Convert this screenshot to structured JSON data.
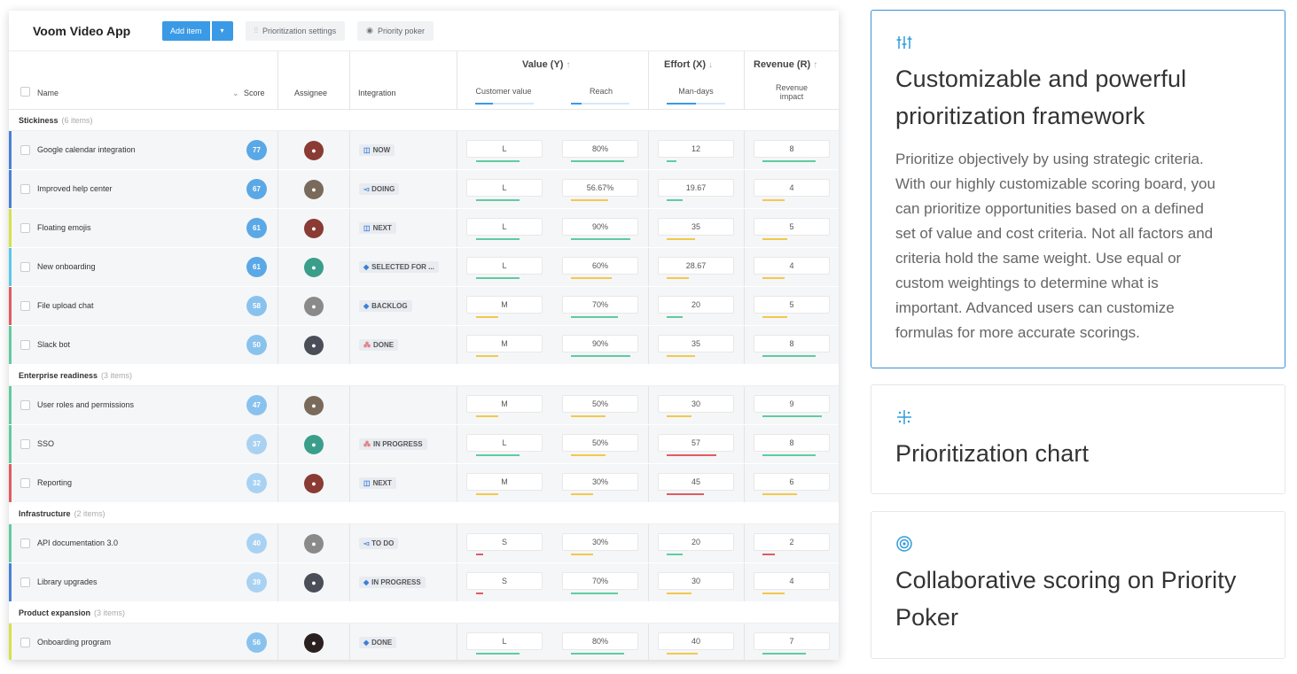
{
  "app": {
    "title": "Voom Video App",
    "add_item_label": "Add item",
    "dropdown_glyph": "▾",
    "prioritization_settings_label": "Prioritization settings",
    "priority_poker_label": "Priority poker"
  },
  "columns": {
    "name": "Name",
    "score": "Score",
    "assignee": "Assignee",
    "integration": "Integration",
    "value_group": "Value (Y)",
    "customer_value": "Customer value",
    "reach": "Reach",
    "effort_group": "Effort (X)",
    "man_days": "Man-days",
    "revenue_group": "Revenue (R)",
    "revenue_impact_1": "Revenue",
    "revenue_impact_2": "impact"
  },
  "colors": {
    "accent": "#3a9ae6",
    "card_accent": "#2f9bdc",
    "green": "#5fcca0",
    "yellow": "#f2c94c",
    "red": "#e05b63"
  },
  "sections": [
    {
      "name": "Stickiness",
      "count": "(6 items)",
      "rows": [
        {
          "name": "Google calendar integration",
          "score": "77",
          "label_color": "#4a7fd8",
          "integration": "NOW",
          "integ_icon": "board-icon",
          "cv": "L",
          "reach": "80%",
          "days": "12",
          "rev": "8",
          "cv_bar": [
            "#5fcca0",
            0.7
          ],
          "reach_bar": [
            "#5fcca0",
            0.85
          ],
          "days_bar": [
            "#5fcca0",
            0.15
          ],
          "rev_bar": [
            "#5fcca0",
            0.85
          ],
          "avatar": "#8a3b34"
        },
        {
          "name": "Improved help center",
          "score": "67",
          "label_color": "#4a7fd8",
          "integration": "DOING",
          "integ_icon": "flag-icon",
          "cv": "L",
          "reach": "56.67%",
          "days": "19.67",
          "rev": "4",
          "cv_bar": [
            "#5fcca0",
            0.7
          ],
          "reach_bar": [
            "#f2c94c",
            0.6
          ],
          "days_bar": [
            "#5fcca0",
            0.25
          ],
          "rev_bar": [
            "#f2c94c",
            0.35
          ],
          "avatar": "#7a6a5c"
        },
        {
          "name": "Floating emojis",
          "score": "61",
          "label_color": "#d8e04a",
          "integration": "NEXT",
          "integ_icon": "board-icon",
          "cv": "L",
          "reach": "90%",
          "days": "35",
          "rev": "5",
          "cv_bar": [
            "#5fcca0",
            0.7
          ],
          "reach_bar": [
            "#5fcca0",
            0.95
          ],
          "days_bar": [
            "#f2c94c",
            0.45
          ],
          "rev_bar": [
            "#f2c94c",
            0.4
          ],
          "avatar": "#8a3b34"
        },
        {
          "name": "New onboarding",
          "score": "61",
          "label_color": "#5ac8e8",
          "integration": "SELECTED FOR ...",
          "integ_icon": "diamond-icon",
          "cv": "L",
          "reach": "60%",
          "days": "28.67",
          "rev": "4",
          "cv_bar": [
            "#5fcca0",
            0.7
          ],
          "reach_bar": [
            "#f2c94c",
            0.65
          ],
          "days_bar": [
            "#f2c94c",
            0.35
          ],
          "rev_bar": [
            "#f2c94c",
            0.35
          ],
          "avatar": "#3a9e8a"
        },
        {
          "name": "File upload chat",
          "score": "58",
          "label_color": "#e05b63",
          "integration": "BACKLOG",
          "integ_icon": "diamond-icon",
          "cv": "M",
          "reach": "70%",
          "days": "20",
          "rev": "5",
          "cv_bar": [
            "#f2c94c",
            0.35
          ],
          "reach_bar": [
            "#5fcca0",
            0.75
          ],
          "days_bar": [
            "#5fcca0",
            0.25
          ],
          "rev_bar": [
            "#f2c94c",
            0.4
          ],
          "avatar": "#8a8a8a"
        },
        {
          "name": "Slack bot",
          "score": "50",
          "label_color": "#5fcca0",
          "integration": "DONE",
          "integ_icon": "dots-icon",
          "cv": "M",
          "reach": "90%",
          "days": "35",
          "rev": "8",
          "cv_bar": [
            "#f2c94c",
            0.35
          ],
          "reach_bar": [
            "#5fcca0",
            0.95
          ],
          "days_bar": [
            "#f2c94c",
            0.45
          ],
          "rev_bar": [
            "#5fcca0",
            0.85
          ],
          "avatar": "#4a4e58"
        }
      ]
    },
    {
      "name": "Enterprise readiness",
      "count": "(3 items)",
      "rows": [
        {
          "name": "User roles and permissions",
          "score": "47",
          "label_color": "#5fcca0",
          "integration": "",
          "integ_icon": "",
          "cv": "M",
          "reach": "50%",
          "days": "30",
          "rev": "9",
          "cv_bar": [
            "#f2c94c",
            0.35
          ],
          "reach_bar": [
            "#f2c94c",
            0.55
          ],
          "days_bar": [
            "#f2c94c",
            0.4
          ],
          "rev_bar": [
            "#5fcca0",
            0.95
          ],
          "avatar": "#7a6a5c"
        },
        {
          "name": "SSO",
          "score": "37",
          "label_color": "#5fcca0",
          "integration": "IN PROGRESS",
          "integ_icon": "dots-icon",
          "cv": "L",
          "reach": "50%",
          "days": "57",
          "rev": "8",
          "cv_bar": [
            "#5fcca0",
            0.7
          ],
          "reach_bar": [
            "#f2c94c",
            0.55
          ],
          "days_bar": [
            "#e05b63",
            0.8
          ],
          "rev_bar": [
            "#5fcca0",
            0.85
          ],
          "avatar": "#3a9e8a"
        },
        {
          "name": "Reporting",
          "score": "32",
          "label_color": "#e05b63",
          "integration": "NEXT",
          "integ_icon": "board-icon",
          "cv": "M",
          "reach": "30%",
          "days": "45",
          "rev": "6",
          "cv_bar": [
            "#f2c94c",
            0.35
          ],
          "reach_bar": [
            "#f2c94c",
            0.35
          ],
          "days_bar": [
            "#e05b63",
            0.6
          ],
          "rev_bar": [
            "#f2c94c",
            0.55
          ],
          "avatar": "#8a3b34"
        }
      ]
    },
    {
      "name": "Infrastructure",
      "count": "(2 items)",
      "rows": [
        {
          "name": "API documentation 3.0",
          "score": "40",
          "label_color": "#5fcca0",
          "integration": "TO DO",
          "integ_icon": "flag-icon",
          "cv": "S",
          "reach": "30%",
          "days": "20",
          "rev": "2",
          "cv_bar": [
            "#e05b63",
            0.12
          ],
          "reach_bar": [
            "#f2c94c",
            0.35
          ],
          "days_bar": [
            "#5fcca0",
            0.25
          ],
          "rev_bar": [
            "#e05b63",
            0.2
          ],
          "avatar": "#8a8a8a"
        },
        {
          "name": "Library upgrades",
          "score": "39",
          "label_color": "#4a7fd8",
          "integration": "IN PROGRESS",
          "integ_icon": "diamond-icon",
          "cv": "S",
          "reach": "70%",
          "days": "30",
          "rev": "4",
          "cv_bar": [
            "#e05b63",
            0.12
          ],
          "reach_bar": [
            "#5fcca0",
            0.75
          ],
          "days_bar": [
            "#f2c94c",
            0.4
          ],
          "rev_bar": [
            "#f2c94c",
            0.35
          ],
          "avatar": "#4a4e58"
        }
      ]
    },
    {
      "name": "Product expansion",
      "count": "(3 items)",
      "rows": [
        {
          "name": "Onboarding program",
          "score": "56",
          "label_color": "#d8e04a",
          "integration": "DONE",
          "integ_icon": "diamond-icon",
          "cv": "L",
          "reach": "80%",
          "days": "40",
          "rev": "7",
          "cv_bar": [
            "#5fcca0",
            0.7
          ],
          "reach_bar": [
            "#5fcca0",
            0.85
          ],
          "days_bar": [
            "#f2c94c",
            0.5
          ],
          "rev_bar": [
            "#5fcca0",
            0.7
          ],
          "avatar": "#2a2020"
        }
      ]
    }
  ],
  "features": {
    "card1": {
      "icon": "sliders-icon",
      "title_line1": "Customizable and powerful",
      "title_line2": "prioritization framework",
      "desc_lines": [
        "Prioritize objectively by using strategic criteria.",
        "With our highly customizable scoring board, you",
        "can prioritize opportunities based on a defined",
        "set of value and cost criteria. Not all factors and",
        "criteria hold the same weight. Use equal or",
        "custom weightings to determine what is",
        "important. Advanced users can customize",
        "formulas for more accurate scorings."
      ]
    },
    "card2": {
      "icon": "chart-icon",
      "title": "Prioritization chart"
    },
    "card3": {
      "icon": "target-icon",
      "title_line1": "Collaborative scoring on Priority",
      "title_line2": "Poker"
    }
  }
}
